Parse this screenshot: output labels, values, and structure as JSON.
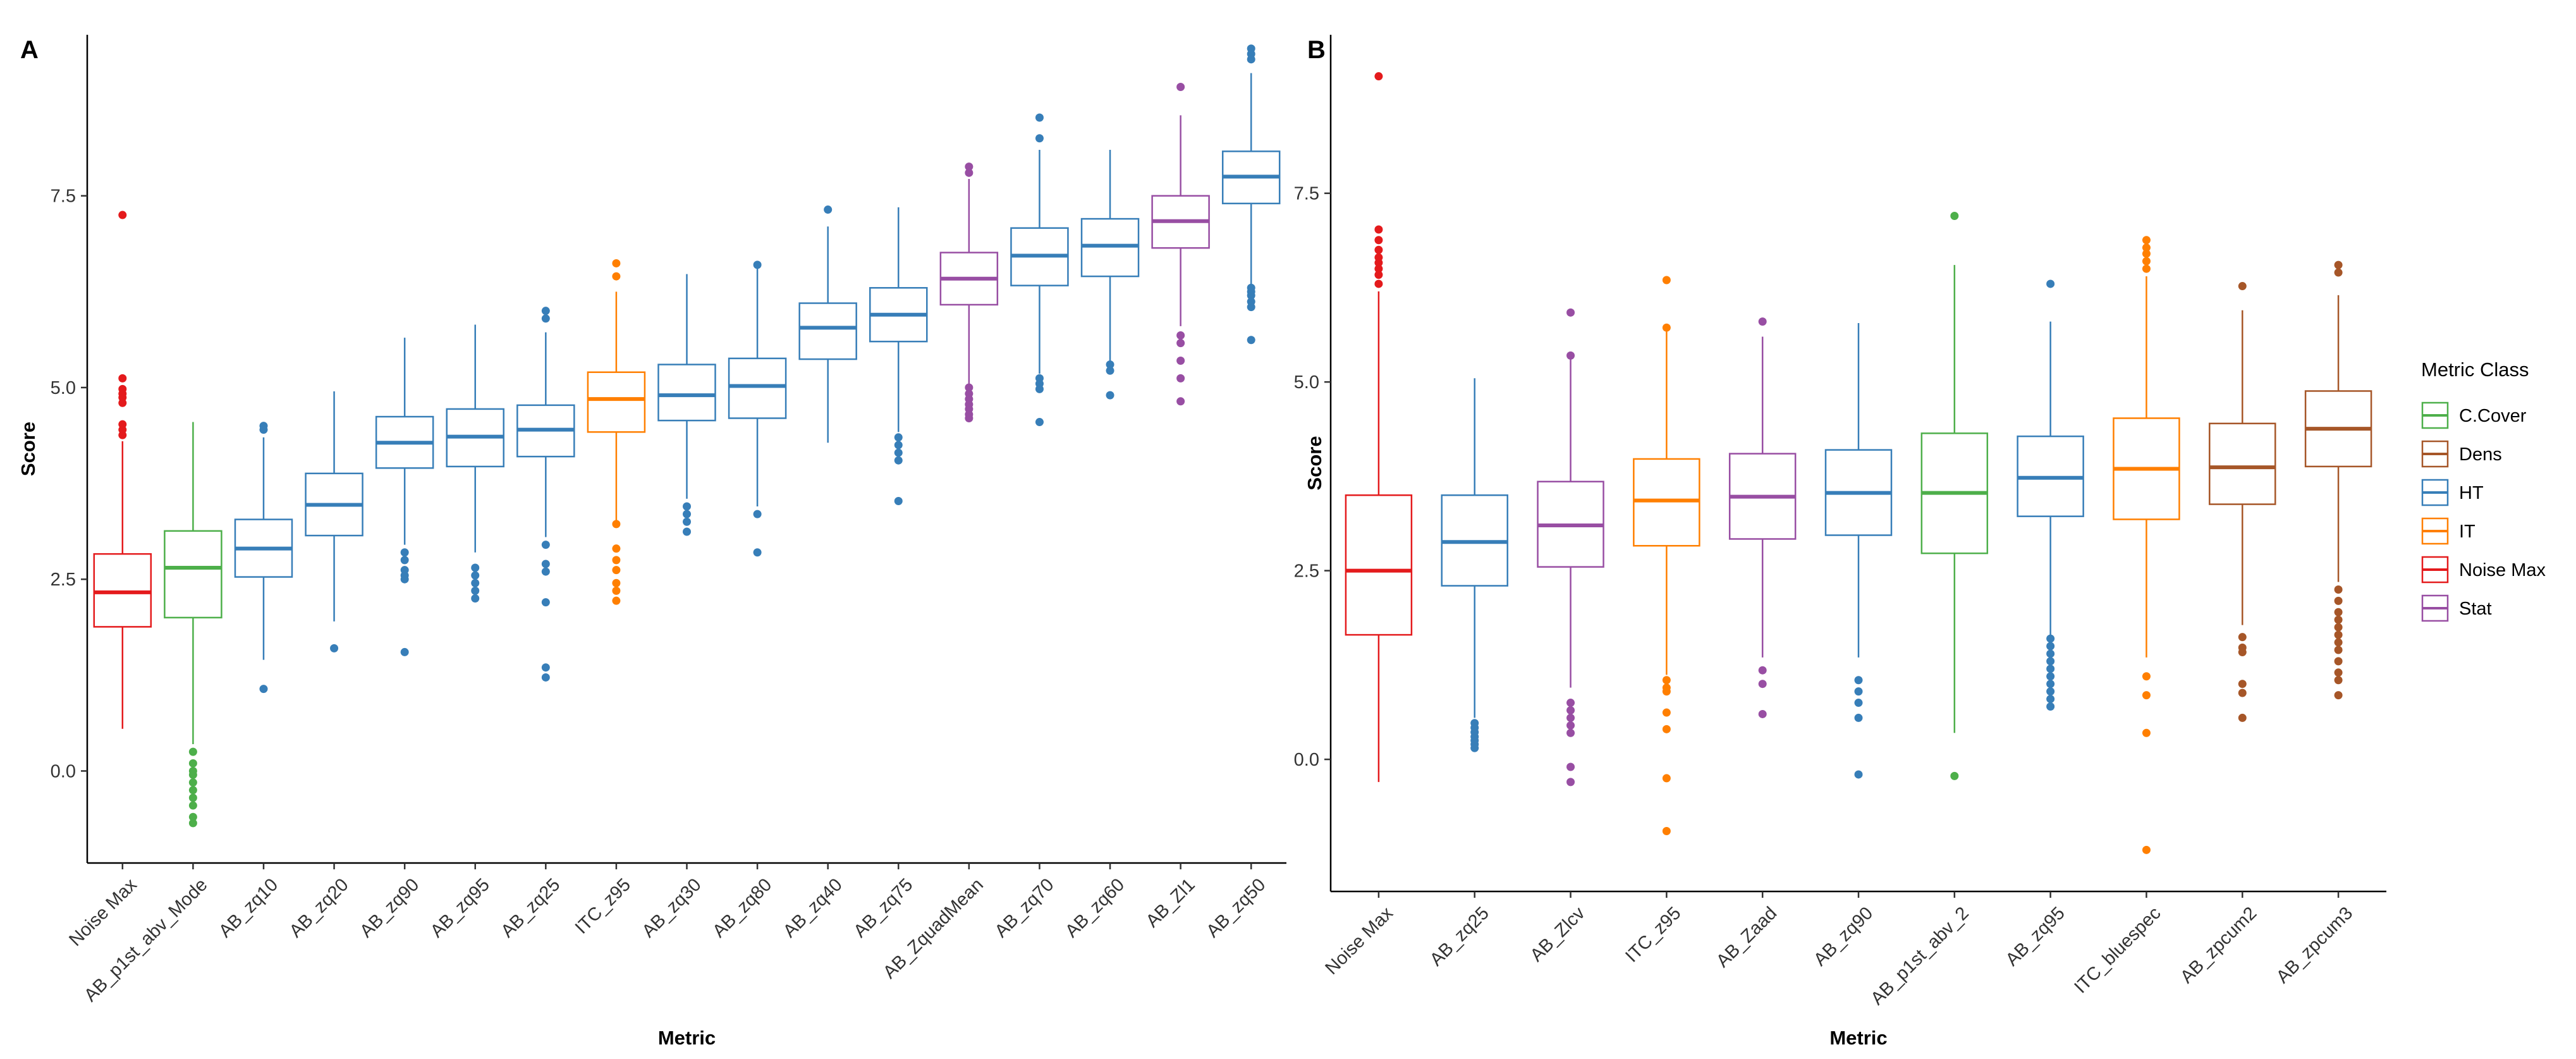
{
  "chart_data": [
    {
      "type": "boxplot",
      "panel_label": "A",
      "xlabel": "Metric",
      "ylabel": "Score",
      "ylim": [
        -1.2,
        9.6
      ],
      "yticks": [
        0.0,
        2.5,
        5.0,
        7.5
      ],
      "ytick_labels": [
        "0.0",
        "2.5",
        "5.0",
        "7.5"
      ],
      "boxes": [
        {
          "metric": "Noise Max",
          "class": "Noise Max",
          "q1": 1.88,
          "median": 2.33,
          "q3": 2.83,
          "whisker_low": 0.55,
          "whisker_high": 4.3,
          "outliers": [
            7.25,
            5.12,
            4.98,
            4.92,
            4.87,
            4.8,
            4.52,
            4.45,
            4.38
          ]
        },
        {
          "metric": "AB_p1st_abv_Mode",
          "class": "C.Cover",
          "q1": 2.0,
          "median": 2.65,
          "q3": 3.13,
          "whisker_low": 0.35,
          "whisker_high": 4.55,
          "outliers": [
            0.25,
            0.1,
            0.0,
            -0.05,
            -0.15,
            -0.25,
            -0.35,
            -0.45,
            -0.6,
            -0.68
          ]
        },
        {
          "metric": "AB_zq10",
          "class": "HT",
          "q1": 2.53,
          "median": 2.9,
          "q3": 3.28,
          "whisker_low": 1.45,
          "whisker_high": 4.35,
          "outliers": [
            4.5,
            4.45,
            1.07
          ]
        },
        {
          "metric": "AB_zq20",
          "class": "HT",
          "q1": 3.07,
          "median": 3.47,
          "q3": 3.88,
          "whisker_low": 1.95,
          "whisker_high": 4.95,
          "outliers": [
            1.6
          ]
        },
        {
          "metric": "AB_zq90",
          "class": "HT",
          "q1": 3.95,
          "median": 4.28,
          "q3": 4.62,
          "whisker_low": 2.95,
          "whisker_high": 5.65,
          "outliers": [
            2.85,
            2.75,
            2.62,
            2.55,
            2.5,
            1.55
          ]
        },
        {
          "metric": "AB_zq95",
          "class": "HT",
          "q1": 3.97,
          "median": 4.36,
          "q3": 4.72,
          "whisker_low": 2.85,
          "whisker_high": 5.82,
          "outliers": [
            2.65,
            2.55,
            2.45,
            2.35,
            2.25
          ]
        },
        {
          "metric": "AB_zq25",
          "class": "HT",
          "q1": 4.1,
          "median": 4.45,
          "q3": 4.77,
          "whisker_low": 3.05,
          "whisker_high": 5.72,
          "outliers": [
            6.0,
            5.9,
            2.95,
            2.7,
            2.6,
            2.2,
            1.35,
            1.22
          ]
        },
        {
          "metric": "ITC_z95",
          "class": "IT",
          "q1": 4.42,
          "median": 4.85,
          "q3": 5.2,
          "whisker_low": 3.25,
          "whisker_high": 6.25,
          "outliers": [
            6.62,
            6.45,
            3.22,
            2.9,
            2.75,
            2.62,
            2.45,
            2.35,
            2.22
          ]
        },
        {
          "metric": "AB_zq30",
          "class": "HT",
          "q1": 4.57,
          "median": 4.9,
          "q3": 5.3,
          "whisker_low": 3.55,
          "whisker_high": 6.48,
          "outliers": [
            3.45,
            3.35,
            3.25,
            3.12
          ]
        },
        {
          "metric": "AB_zq80",
          "class": "HT",
          "q1": 4.6,
          "median": 5.02,
          "q3": 5.38,
          "whisker_low": 3.45,
          "whisker_high": 6.55,
          "outliers": [
            6.6,
            3.35,
            2.85
          ]
        },
        {
          "metric": "AB_zq40",
          "class": "HT",
          "q1": 5.37,
          "median": 5.78,
          "q3": 6.1,
          "whisker_low": 4.28,
          "whisker_high": 7.1,
          "outliers": [
            7.32
          ]
        },
        {
          "metric": "AB_zq75",
          "class": "HT",
          "q1": 5.6,
          "median": 5.95,
          "q3": 6.3,
          "whisker_low": 4.42,
          "whisker_high": 7.35,
          "outliers": [
            4.35,
            4.25,
            4.15,
            4.05,
            3.52
          ]
        },
        {
          "metric": "AB_ZquadMean",
          "class": "Stat",
          "q1": 6.08,
          "median": 6.42,
          "q3": 6.76,
          "whisker_low": 5.05,
          "whisker_high": 7.72,
          "outliers": [
            7.88,
            7.8,
            5.0,
            4.92,
            4.85,
            4.78,
            4.72,
            4.65,
            4.6
          ]
        },
        {
          "metric": "AB_zq70",
          "class": "HT",
          "q1": 6.33,
          "median": 6.72,
          "q3": 7.08,
          "whisker_low": 5.18,
          "whisker_high": 8.1,
          "outliers": [
            8.52,
            8.25,
            5.12,
            5.05,
            4.98,
            4.55
          ]
        },
        {
          "metric": "AB_zq60",
          "class": "HT",
          "q1": 6.45,
          "median": 6.85,
          "q3": 7.2,
          "whisker_low": 5.35,
          "whisker_high": 8.1,
          "outliers": [
            5.3,
            5.22,
            4.9
          ]
        },
        {
          "metric": "AB_Zl1",
          "class": "Stat",
          "q1": 6.82,
          "median": 7.17,
          "q3": 7.5,
          "whisker_low": 5.8,
          "whisker_high": 8.55,
          "outliers": [
            8.92,
            5.68,
            5.58,
            5.35,
            5.12,
            4.82
          ]
        },
        {
          "metric": "AB_zq50",
          "class": "HT",
          "q1": 7.4,
          "median": 7.75,
          "q3": 8.08,
          "whisker_low": 6.35,
          "whisker_high": 9.1,
          "outliers": [
            9.42,
            9.35,
            9.28,
            6.3,
            6.25,
            6.2,
            6.12,
            6.05,
            5.62
          ]
        }
      ]
    },
    {
      "type": "boxplot",
      "panel_label": "B",
      "xlabel": "Metric",
      "ylabel": "Score",
      "ylim": [
        -1.75,
        9.6
      ],
      "yticks": [
        0.0,
        2.5,
        5.0,
        7.5
      ],
      "ytick_labels": [
        "0.0",
        "2.5",
        "5.0",
        "7.5"
      ],
      "boxes": [
        {
          "metric": "Noise Max",
          "class": "Noise Max",
          "q1": 1.65,
          "median": 2.5,
          "q3": 3.5,
          "whisker_low": -0.3,
          "whisker_high": 6.2,
          "outliers": [
            9.05,
            7.02,
            6.88,
            6.75,
            6.65,
            6.58,
            6.5,
            6.42,
            6.3
          ]
        },
        {
          "metric": "AB_zq25",
          "class": "HT",
          "q1": 2.3,
          "median": 2.88,
          "q3": 3.5,
          "whisker_low": 0.55,
          "whisker_high": 5.05,
          "outliers": [
            0.48,
            0.42,
            0.36,
            0.3,
            0.25,
            0.2,
            0.15
          ]
        },
        {
          "metric": "AB_Zlcv",
          "class": "Stat",
          "q1": 2.55,
          "median": 3.1,
          "q3": 3.68,
          "whisker_low": 0.95,
          "whisker_high": 5.3,
          "outliers": [
            5.92,
            5.35,
            0.75,
            0.65,
            0.55,
            0.45,
            0.35,
            -0.1,
            -0.3
          ]
        },
        {
          "metric": "ITC_z95",
          "class": "IT",
          "q1": 2.83,
          "median": 3.43,
          "q3": 3.98,
          "whisker_low": 1.12,
          "whisker_high": 5.7,
          "outliers": [
            6.35,
            5.72,
            1.05,
            0.95,
            0.9,
            0.62,
            0.4,
            -0.25,
            -0.95
          ]
        },
        {
          "metric": "AB_Zaad",
          "class": "Stat",
          "q1": 2.92,
          "median": 3.48,
          "q3": 4.05,
          "whisker_low": 1.35,
          "whisker_high": 5.6,
          "outliers": [
            5.8,
            1.18,
            1.0,
            0.6
          ]
        },
        {
          "metric": "AB_zq90",
          "class": "HT",
          "q1": 2.97,
          "median": 3.53,
          "q3": 4.1,
          "whisker_low": 1.35,
          "whisker_high": 5.78,
          "outliers": [
            1.05,
            0.9,
            0.75,
            0.55,
            -0.2
          ]
        },
        {
          "metric": "AB_p1st_abv_2",
          "class": "C.Cover",
          "q1": 2.73,
          "median": 3.53,
          "q3": 4.32,
          "whisker_low": 0.35,
          "whisker_high": 6.55,
          "outliers": [
            7.2,
            -0.22
          ]
        },
        {
          "metric": "AB_zq95",
          "class": "HT",
          "q1": 3.22,
          "median": 3.73,
          "q3": 4.28,
          "whisker_low": 1.65,
          "whisker_high": 5.8,
          "outliers": [
            6.3,
            1.6,
            1.5,
            1.4,
            1.3,
            1.2,
            1.1,
            1.0,
            0.9,
            0.8,
            0.7
          ]
        },
        {
          "metric": "ITC_bluespec",
          "class": "IT",
          "q1": 3.18,
          "median": 3.85,
          "q3": 4.52,
          "whisker_low": 1.35,
          "whisker_high": 6.4,
          "outliers": [
            6.88,
            6.78,
            6.7,
            6.6,
            6.5,
            1.1,
            0.85,
            0.35,
            -1.2
          ]
        },
        {
          "metric": "AB_zpcum2",
          "class": "Dens",
          "q1": 3.38,
          "median": 3.87,
          "q3": 4.45,
          "whisker_low": 1.78,
          "whisker_high": 5.95,
          "outliers": [
            6.27,
            1.62,
            1.48,
            1.42,
            1.0,
            0.88,
            0.55
          ]
        },
        {
          "metric": "AB_zpcum3",
          "class": "Dens",
          "q1": 3.88,
          "median": 4.38,
          "q3": 4.88,
          "whisker_low": 2.35,
          "whisker_high": 6.15,
          "outliers": [
            6.55,
            6.45,
            2.25,
            2.1,
            1.95,
            1.85,
            1.75,
            1.65,
            1.55,
            1.45,
            1.3,
            1.15,
            1.05,
            0.85
          ]
        }
      ]
    }
  ],
  "legend": {
    "title": "Metric Class",
    "items": [
      {
        "label": "C.Cover",
        "color": "#4daf4a"
      },
      {
        "label": "Dens",
        "color": "#a65628"
      },
      {
        "label": "HT",
        "color": "#377eb8"
      },
      {
        "label": "IT",
        "color": "#ff7f00"
      },
      {
        "label": "Noise Max",
        "color": "#e41a1c"
      },
      {
        "label": "Stat",
        "color": "#984ea3"
      }
    ]
  }
}
